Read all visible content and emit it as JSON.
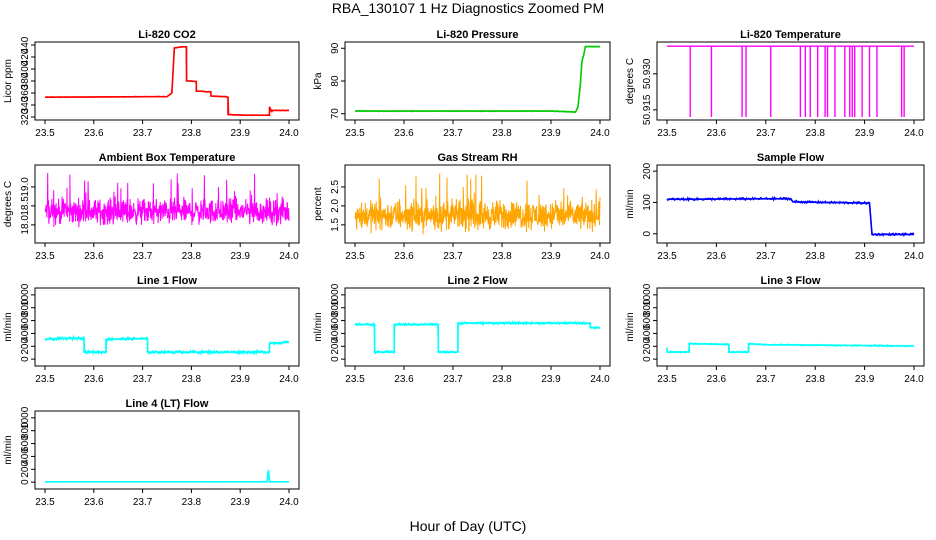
{
  "title": "RBA_130107  1 Hz Diagnostics Zoomed PM",
  "xlabel": "Hour of Day (UTC)",
  "colors": {
    "co2": "#ff0000",
    "pressure": "#00cc00",
    "temperature": "#ff00ff",
    "ambient": "#ff00ff",
    "rh": "#ffa500",
    "sample_flow": "#0000ff",
    "line_flow": "#00ffff",
    "axis": "#000000"
  },
  "chart_data": [
    {
      "id": "co2",
      "type": "line",
      "title": "Li-820 CO2",
      "ylabel": "Licor ppm",
      "xlim": [
        23.5,
        24.0
      ],
      "ylim": [
        320,
        440
      ],
      "xticks": [
        "23.5",
        "23.6",
        "23.7",
        "23.8",
        "23.9",
        "24.0"
      ],
      "yticks": [
        "320",
        "340",
        "360",
        "380",
        "400",
        "420",
        "440"
      ],
      "series": [
        {
          "name": "CO2",
          "color": "co2",
          "noise": 0.6,
          "x": [
            23.5,
            23.75,
            23.75,
            23.76,
            23.765,
            23.78,
            23.785,
            23.79,
            23.79,
            23.8,
            23.81,
            23.81,
            23.82,
            23.83,
            23.84,
            23.84,
            23.86,
            23.87,
            23.875,
            23.875,
            23.91,
            23.96,
            23.96,
            23.965,
            23.965,
            24.0
          ],
          "y": [
            353,
            354,
            354,
            360,
            435,
            437,
            437,
            437,
            380,
            380,
            379,
            363,
            363,
            362,
            362,
            355,
            354,
            354,
            353,
            324,
            323,
            323,
            337,
            328,
            331,
            331
          ]
        }
      ]
    },
    {
      "id": "pressure",
      "type": "line",
      "title": "Li-820 Pressure",
      "ylabel": "kPa",
      "xlim": [
        23.5,
        24.0
      ],
      "ylim": [
        69,
        91
      ],
      "xticks": [
        "23.5",
        "23.6",
        "23.7",
        "23.8",
        "23.9",
        "24.0"
      ],
      "yticks": [
        "70",
        "80",
        "90"
      ],
      "series": [
        {
          "name": "Pressure",
          "color": "pressure",
          "noise": 0.15,
          "x": [
            23.5,
            23.9,
            23.95,
            23.955,
            23.96,
            23.963,
            23.967,
            23.97,
            24.0
          ],
          "y": [
            70.8,
            70.8,
            70.5,
            72,
            79,
            86,
            88,
            90.5,
            90.5
          ]
        }
      ]
    },
    {
      "id": "temperature",
      "type": "spikes",
      "title": "Li-820 Temperature",
      "ylabel": "degrees C",
      "xlim": [
        23.5,
        24.0
      ],
      "ylim": [
        50.912,
        50.942
      ],
      "xticks": [
        "23.5",
        "23.6",
        "23.7",
        "23.8",
        "23.9",
        "24.0"
      ],
      "yticks": [
        "50.915",
        "50.930"
      ],
      "baseline": 50.9415,
      "low": 50.912,
      "spike_x": [
        23.547,
        23.59,
        23.652,
        23.66,
        23.71,
        23.77,
        23.78,
        23.79,
        23.805,
        23.82,
        23.825,
        23.84,
        23.86,
        23.87,
        23.875,
        23.88,
        23.895,
        23.91,
        23.925,
        23.975,
        23.98
      ],
      "color": "temperature"
    },
    {
      "id": "ambient",
      "type": "noise",
      "title": "Ambient Box Temperature",
      "ylabel": "degrees C",
      "xlim": [
        23.5,
        24.0
      ],
      "ylim": [
        17.6,
        19.5
      ],
      "xticks": [
        "23.5",
        "23.6",
        "23.7",
        "23.8",
        "23.9",
        "24.0"
      ],
      "yticks": [
        "18.0",
        "18.5",
        "19.0"
      ],
      "center": 18.35,
      "spread": 0.3,
      "min": 17.75,
      "max": 19.4,
      "color": "ambient",
      "samples": 900
    },
    {
      "id": "rh",
      "type": "noise",
      "title": "Gas Stream RH",
      "ylabel": "percent",
      "xlim": [
        23.5,
        24.0
      ],
      "ylim": [
        1.1,
        3.0
      ],
      "xticks": [
        "23.5",
        "23.6",
        "23.7",
        "23.8",
        "23.9",
        "24.0"
      ],
      "yticks": [
        "1.5",
        "2.0",
        "2.5"
      ],
      "center": 1.75,
      "spread": 0.35,
      "min": 1.15,
      "max": 2.9,
      "color": "rh",
      "samples": 900
    },
    {
      "id": "sample_flow",
      "type": "line",
      "title": "Sample Flow",
      "ylabel": "ml/min",
      "xlim": [
        23.5,
        24.0
      ],
      "ylim": [
        -20,
        210
      ],
      "xticks": [
        "23.5",
        "23.6",
        "23.7",
        "23.8",
        "23.9",
        "24.0"
      ],
      "yticks": [
        "0",
        "100",
        "200"
      ],
      "series": [
        {
          "name": "Sample Flow",
          "color": "sample_flow",
          "noise": 4,
          "x": [
            23.5,
            23.75,
            23.755,
            23.9,
            23.91,
            23.915,
            24.0
          ],
          "y": [
            110,
            112,
            102,
            98,
            98,
            -2,
            -2
          ]
        }
      ]
    },
    {
      "id": "line1",
      "type": "line",
      "title": "Line 1 Flow",
      "ylabel": "ml/min",
      "xlim": [
        23.5,
        24.0
      ],
      "ylim": [
        -60,
        1060
      ],
      "xticks": [
        "23.5",
        "23.6",
        "23.7",
        "23.8",
        "23.9",
        "24.0"
      ],
      "yticks": [
        "0",
        "200",
        "400",
        "600",
        "800",
        "1000"
      ],
      "series": [
        {
          "name": "Line 1 Flow",
          "color": "line_flow",
          "noise": 25,
          "x": [
            23.5,
            23.58,
            23.58,
            23.625,
            23.625,
            23.71,
            23.71,
            23.96,
            23.96,
            24.0
          ],
          "y": [
            310,
            330,
            110,
            110,
            310,
            320,
            110,
            110,
            250,
            260
          ]
        }
      ]
    },
    {
      "id": "line2",
      "type": "line",
      "title": "Line 2 Flow",
      "ylabel": "ml/min",
      "xlim": [
        23.5,
        24.0
      ],
      "ylim": [
        -60,
        1060
      ],
      "xticks": [
        "23.5",
        "23.6",
        "23.7",
        "23.8",
        "23.9",
        "24.0"
      ],
      "yticks": [
        "0",
        "200",
        "400",
        "600",
        "800",
        "1000"
      ],
      "series": [
        {
          "name": "Line 2 Flow",
          "color": "line_flow",
          "noise": 20,
          "x": [
            23.5,
            23.54,
            23.54,
            23.58,
            23.58,
            23.67,
            23.67,
            23.71,
            23.71,
            23.98,
            23.98,
            24.0
          ],
          "y": [
            540,
            540,
            110,
            110,
            540,
            540,
            110,
            110,
            560,
            560,
            490,
            490
          ]
        }
      ]
    },
    {
      "id": "line3",
      "type": "line",
      "title": "Line 3 Flow",
      "ylabel": "ml/min",
      "xlim": [
        23.5,
        24.0
      ],
      "ylim": [
        -60,
        1060
      ],
      "xticks": [
        "23.5",
        "23.6",
        "23.7",
        "23.8",
        "23.9",
        "24.0"
      ],
      "yticks": [
        "0",
        "200",
        "400",
        "600",
        "800",
        "1000"
      ],
      "series": [
        {
          "name": "Line 3 Flow",
          "color": "line_flow",
          "noise": 12,
          "x": [
            23.5,
            23.5,
            23.545,
            23.545,
            23.625,
            23.625,
            23.665,
            23.665,
            23.7,
            24.0
          ],
          "y": [
            180,
            110,
            110,
            240,
            230,
            110,
            110,
            240,
            225,
            205
          ]
        }
      ]
    },
    {
      "id": "line4",
      "type": "line",
      "title": "Line 4 (LT) Flow",
      "ylabel": "ml/min",
      "xlim": [
        23.5,
        24.0
      ],
      "ylim": [
        -60,
        1060
      ],
      "xticks": [
        "23.5",
        "23.6",
        "23.7",
        "23.8",
        "23.9",
        "24.0"
      ],
      "yticks": [
        "0",
        "200",
        "400",
        "600",
        "800",
        "1000"
      ],
      "series": [
        {
          "name": "Line 4 (LT) Flow",
          "color": "line_flow",
          "noise": 3,
          "x": [
            23.5,
            23.955,
            23.958,
            23.96,
            23.962,
            24.0
          ],
          "y": [
            5,
            5,
            190,
            5,
            5,
            5
          ]
        }
      ]
    }
  ]
}
